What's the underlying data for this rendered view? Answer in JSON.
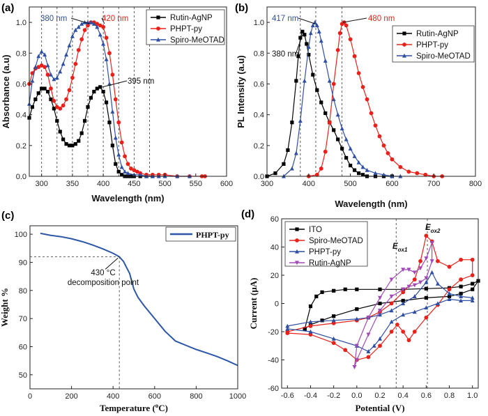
{
  "chart_data": [
    {
      "id": "a",
      "type": "line",
      "panel_label": "(a)",
      "xlabel": "Wavelength (nm)",
      "ylabel": "Absorbance (a.u)",
      "xlim": [
        280,
        600
      ],
      "ylim": [
        0.0,
        1.1
      ],
      "xticks": [
        300,
        350,
        400,
        450,
        500,
        550,
        600
      ],
      "yticks": [
        0.0,
        0.2,
        0.4,
        0.6,
        0.8,
        1.0
      ],
      "xtick_labels": [
        "300",
        "350",
        "400",
        "450",
        "500",
        "550",
        "600"
      ],
      "ytick_labels": [
        "0.0",
        "0.2",
        "0.4",
        "0.6",
        "0.8",
        "1.0"
      ],
      "vlines": [
        300,
        325,
        350,
        375,
        400,
        425,
        450,
        475
      ],
      "legend_position": "top-right",
      "series": [
        {
          "name": "Rutin-AgNP",
          "color": "#000000",
          "marker": "square",
          "x": [
            280,
            285,
            290,
            295,
            300,
            305,
            310,
            315,
            320,
            325,
            330,
            335,
            340,
            345,
            350,
            355,
            360,
            365,
            370,
            375,
            380,
            385,
            390,
            395,
            400,
            405,
            410,
            415,
            420,
            425,
            430,
            435,
            440,
            445,
            450,
            460,
            470,
            480
          ],
          "y": [
            0.38,
            0.45,
            0.5,
            0.54,
            0.57,
            0.57,
            0.55,
            0.5,
            0.44,
            0.36,
            0.29,
            0.24,
            0.21,
            0.2,
            0.2,
            0.21,
            0.23,
            0.28,
            0.36,
            0.45,
            0.51,
            0.55,
            0.57,
            0.58,
            0.55,
            0.48,
            0.35,
            0.2,
            0.08,
            0.03,
            0.01,
            0.0,
            0.0,
            0.0,
            0.0,
            0.0,
            0.0,
            0.0
          ]
        },
        {
          "name": "PHPT-py",
          "color": "#e8221b",
          "marker": "circle",
          "x": [
            280,
            285,
            290,
            295,
            300,
            305,
            310,
            315,
            320,
            325,
            330,
            335,
            340,
            345,
            350,
            355,
            360,
            365,
            370,
            375,
            380,
            385,
            390,
            395,
            400,
            405,
            410,
            415,
            420,
            425,
            430,
            435,
            440,
            445,
            450,
            455,
            460,
            470,
            480,
            490,
            500,
            520,
            540,
            560,
            565
          ],
          "y": [
            0.6,
            0.67,
            0.7,
            0.71,
            0.72,
            0.71,
            0.66,
            0.57,
            0.49,
            0.45,
            0.44,
            0.46,
            0.5,
            0.56,
            0.64,
            0.73,
            0.82,
            0.89,
            0.95,
            0.98,
            1.0,
            1.0,
            0.99,
            0.98,
            0.97,
            0.9,
            0.8,
            0.66,
            0.5,
            0.35,
            0.22,
            0.13,
            0.08,
            0.05,
            0.04,
            0.03,
            0.02,
            0.01,
            0.01,
            0.01,
            0.01,
            0.0,
            0.0,
            0.0,
            0.0
          ]
        },
        {
          "name": "Spiro-MeOTAD",
          "color": "#2f4fa2",
          "marker": "triangle",
          "x": [
            280,
            285,
            290,
            295,
            300,
            305,
            310,
            315,
            320,
            325,
            330,
            335,
            340,
            345,
            350,
            355,
            360,
            365,
            370,
            375,
            380,
            385,
            390,
            395,
            400,
            405,
            410,
            415,
            420,
            425,
            430,
            435,
            440,
            450,
            460,
            470,
            480,
            490,
            500,
            520,
            540
          ],
          "y": [
            0.47,
            0.62,
            0.71,
            0.78,
            0.81,
            0.79,
            0.72,
            0.66,
            0.63,
            0.64,
            0.68,
            0.73,
            0.79,
            0.85,
            0.91,
            0.95,
            0.97,
            0.99,
            1.0,
            1.0,
            1.0,
            0.99,
            0.97,
            0.92,
            0.86,
            0.76,
            0.6,
            0.42,
            0.25,
            0.14,
            0.06,
            0.03,
            0.02,
            0.01,
            0.01,
            0.0,
            0.0,
            0.0,
            0.0,
            0.0,
            0.0
          ]
        }
      ],
      "annotations": [
        {
          "text": "380 nm",
          "color": "#2f4fa2",
          "x": 380,
          "y": 1.0
        },
        {
          "text": "420 nm",
          "color": "#e8221b",
          "x": 400,
          "y": 1.0
        },
        {
          "text": "395 nm",
          "color": "#111111",
          "x": 395,
          "y": 0.58
        }
      ]
    },
    {
      "id": "b",
      "type": "line",
      "panel_label": "(b)",
      "xlabel": "Wavelength (nm)",
      "ylabel": "PL Intensity (a.u)",
      "xlim": [
        300,
        800
      ],
      "ylim": [
        0.0,
        1.1
      ],
      "xticks": [
        300,
        400,
        500,
        600,
        700,
        800
      ],
      "yticks": [
        0.0,
        0.2,
        0.4,
        0.6,
        0.8,
        1.0
      ],
      "xtick_labels": [
        "300",
        "400",
        "500",
        "600",
        "700",
        "800"
      ],
      "ytick_labels": [
        "0.0",
        "0.2",
        "0.4",
        "0.6",
        "0.8",
        "1.0"
      ],
      "vlines": [
        380,
        417,
        480
      ],
      "legend_position": "top-right",
      "series": [
        {
          "name": "Rutin-AgNP",
          "color": "#000000",
          "marker": "square",
          "x": [
            300,
            320,
            340,
            350,
            360,
            370,
            375,
            380,
            385,
            390,
            395,
            400,
            410,
            420,
            430,
            440,
            450,
            460,
            470,
            480,
            490,
            500,
            510,
            520,
            530,
            540,
            560,
            580,
            600
          ],
          "y": [
            0.0,
            0.02,
            0.08,
            0.17,
            0.35,
            0.62,
            0.78,
            0.9,
            0.94,
            0.92,
            0.86,
            0.79,
            0.66,
            0.56,
            0.48,
            0.41,
            0.35,
            0.3,
            0.24,
            0.18,
            0.12,
            0.07,
            0.04,
            0.02,
            0.01,
            0.0,
            0.0,
            0.0,
            0.0
          ]
        },
        {
          "name": "PHPT-py",
          "color": "#e8221b",
          "marker": "circle",
          "x": [
            400,
            420,
            430,
            440,
            450,
            460,
            470,
            475,
            480,
            485,
            490,
            500,
            510,
            520,
            530,
            540,
            550,
            560,
            570,
            580,
            590,
            600,
            620,
            640,
            660,
            680,
            700,
            720
          ],
          "y": [
            0.0,
            0.01,
            0.05,
            0.16,
            0.35,
            0.6,
            0.82,
            0.93,
            0.99,
            1.0,
            0.98,
            0.89,
            0.78,
            0.67,
            0.58,
            0.5,
            0.41,
            0.33,
            0.26,
            0.2,
            0.15,
            0.11,
            0.06,
            0.03,
            0.02,
            0.01,
            0.0,
            0.0
          ]
        },
        {
          "name": "Spiro-MeOTAD",
          "color": "#2f4fa2",
          "marker": "triangle",
          "x": [
            340,
            360,
            370,
            380,
            390,
            400,
            405,
            410,
            415,
            420,
            425,
            430,
            440,
            450,
            460,
            470,
            480,
            490,
            500,
            510,
            520,
            530,
            540,
            560,
            580,
            600,
            620
          ],
          "y": [
            0.0,
            0.05,
            0.15,
            0.36,
            0.62,
            0.84,
            0.93,
            0.98,
            1.0,
            0.98,
            0.94,
            0.88,
            0.75,
            0.62,
            0.5,
            0.4,
            0.31,
            0.24,
            0.18,
            0.13,
            0.09,
            0.06,
            0.04,
            0.02,
            0.01,
            0.0,
            0.0
          ]
        }
      ],
      "annotations": [
        {
          "text": "417 nm",
          "color": "#2f4fa2",
          "x": 417,
          "y": 1.0
        },
        {
          "text": "480 nm",
          "color": "#e8221b",
          "x": 480,
          "y": 1.0
        },
        {
          "text": "380 nm",
          "color": "#111111",
          "x": 380,
          "y": 0.92
        }
      ]
    },
    {
      "id": "c",
      "type": "line",
      "panel_label": "(c)",
      "xlabel": "Temperature (°C)",
      "ylabel": "Weight %",
      "xlim": [
        0,
        1000
      ],
      "ylim": [
        45,
        103
      ],
      "xticks": [
        0,
        200,
        400,
        600,
        800,
        1000
      ],
      "yticks": [
        50,
        60,
        70,
        80,
        90,
        100
      ],
      "xtick_labels": [
        "0",
        "200",
        "400",
        "600",
        "800",
        "1000"
      ],
      "ytick_labels": [
        "50",
        "60",
        "70",
        "80",
        "90",
        "100"
      ],
      "legend_position": "top-right",
      "series": [
        {
          "name": "PHPT-py",
          "color": "#2c56a6",
          "marker": "none",
          "x": [
            50,
            100,
            150,
            200,
            250,
            300,
            350,
            400,
            430,
            450,
            480,
            500,
            520,
            550,
            600,
            650,
            700,
            750,
            800,
            850,
            900,
            950,
            1000
          ],
          "y": [
            100.3,
            99.6,
            99.1,
            98.4,
            97.4,
            96.2,
            94.8,
            93.2,
            92.0,
            90.3,
            86.0,
            80.5,
            77.5,
            74.5,
            70.0,
            65.5,
            62.0,
            60.5,
            59.0,
            57.8,
            56.5,
            55.0,
            53.3
          ]
        }
      ],
      "reference": {
        "x": 430,
        "y": 92
      },
      "annotations": [
        {
          "text": "430 °C",
          "color": "#111111"
        },
        {
          "text": "decomposition point",
          "color": "#111111"
        }
      ]
    },
    {
      "id": "d",
      "type": "line",
      "panel_label": "(d)",
      "xlabel": "Potential (V)",
      "ylabel": "Current (μA)",
      "xlim": [
        -0.65,
        1.05
      ],
      "ylim": [
        -60,
        60
      ],
      "xticks": [
        -0.6,
        -0.4,
        -0.2,
        0.0,
        0.2,
        0.4,
        0.6,
        0.8,
        1.0
      ],
      "yticks": [
        -60,
        -40,
        -20,
        0,
        20,
        40,
        60
      ],
      "xtick_labels": [
        "-0.6",
        "-0.4",
        "-0.2",
        "0.0",
        "0.2",
        "0.4",
        "0.6",
        "0.8",
        "1.0"
      ],
      "ytick_labels": [
        "-60",
        "-40",
        "-20",
        "0",
        "20",
        "40",
        "60"
      ],
      "vlines": [
        0.34,
        0.61
      ],
      "legend_position": "top-left",
      "series": [
        {
          "name": "ITO",
          "color": "#000000",
          "marker": "square",
          "x": [
            -0.45,
            -0.4,
            -0.35,
            -0.3,
            -0.2,
            -0.1,
            0.0,
            0.2,
            0.4,
            0.6,
            0.8,
            0.9,
            1.0,
            1.05,
            1.0,
            0.9,
            0.8,
            0.6,
            0.4,
            0.2,
            0.0,
            -0.2,
            -0.3,
            -0.4,
            -0.45
          ],
          "y": [
            -18,
            -2,
            5,
            8,
            9,
            10,
            10,
            10,
            10,
            10.5,
            11,
            12,
            14,
            16,
            10,
            7,
            5,
            4,
            2,
            0,
            -4,
            -9,
            -12,
            -15,
            -18
          ]
        },
        {
          "name": "Spiro-MeOTAD",
          "color": "#e8221b",
          "marker": "circle",
          "x": [
            -0.6,
            -0.4,
            -0.2,
            0.0,
            0.1,
            0.2,
            0.3,
            0.4,
            0.5,
            0.55,
            0.6,
            0.65,
            0.7,
            0.8,
            0.9,
            1.0,
            1.0,
            0.9,
            0.8,
            0.7,
            0.6,
            0.5,
            0.45,
            0.4,
            0.35,
            0.3,
            0.2,
            0.1,
            0.0,
            -0.1,
            -0.2,
            -0.4,
            -0.6
          ],
          "y": [
            -20,
            -16,
            -14,
            -12,
            -10,
            -6,
            0,
            8,
            17,
            30,
            48,
            44,
            30,
            26,
            31,
            31,
            20,
            17,
            10,
            -1,
            -10,
            -20,
            -26,
            -20,
            -15,
            -20,
            -30,
            -38,
            -40,
            -33,
            -28,
            -22,
            -21
          ]
        },
        {
          "name": "PHPT-py",
          "color": "#2f4fa2",
          "marker": "triangle",
          "x": [
            -0.6,
            -0.4,
            -0.2,
            0.0,
            0.1,
            0.2,
            0.3,
            0.4,
            0.5,
            0.6,
            0.65,
            0.7,
            0.8,
            0.9,
            1.0,
            1.0,
            0.9,
            0.8,
            0.7,
            0.6,
            0.5,
            0.4,
            0.3,
            0.2,
            0.15,
            0.1,
            0.0,
            -0.2,
            -0.4,
            -0.6
          ],
          "y": [
            -16,
            -13,
            -12,
            -11,
            -10,
            -8,
            -5,
            0,
            5,
            15,
            22,
            14,
            7,
            5,
            4,
            2,
            2,
            3,
            0,
            -3,
            -6,
            -8,
            -13,
            -25,
            -30,
            -34,
            -30,
            -25,
            -20,
            -18
          ]
        },
        {
          "name": "Rutin-AgNP",
          "color": "#a04ab5",
          "marker": "triangle-down",
          "x": [
            -0.02,
            0.0,
            0.1,
            0.2,
            0.3,
            0.4,
            0.45,
            0.5,
            0.55,
            0.6,
            0.65,
            0.65,
            0.6,
            0.55,
            0.5,
            0.45,
            0.4,
            0.3,
            0.2,
            0.1,
            0.0,
            -0.02
          ],
          "y": [
            -45,
            -30,
            -10,
            4,
            17,
            24,
            24,
            22,
            25,
            32,
            43,
            30,
            18,
            15,
            13,
            12,
            10,
            5,
            -5,
            -22,
            -40,
            -45
          ]
        }
      ],
      "annotations": [
        {
          "text": "E",
          "subscript": "ox1",
          "color": "#111111"
        },
        {
          "text": "E",
          "subscript": "ox2",
          "color": "#111111"
        }
      ]
    }
  ]
}
